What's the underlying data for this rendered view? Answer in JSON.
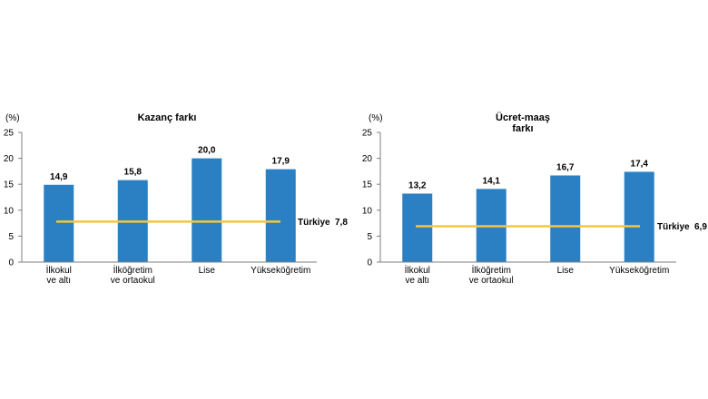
{
  "chart_data": [
    {
      "type": "bar",
      "title_lines": [
        "Kazanç farkı"
      ],
      "unit": "(%)",
      "categories": [
        [
          "İlkokul",
          "ve altı"
        ],
        [
          "İlköğretim",
          "ve ortaokul"
        ],
        [
          "Lise"
        ],
        [
          "Yükseköğretim"
        ]
      ],
      "values": [
        14.9,
        15.8,
        20.0,
        17.9
      ],
      "value_labels": [
        "14,9",
        "15,8",
        "20,0",
        "17,9"
      ],
      "ylim": [
        0,
        25
      ],
      "yticks": [
        0,
        5,
        10,
        15,
        20,
        25
      ],
      "reference_line": {
        "label": "Türkiye",
        "value": 7.8,
        "value_label": "7,8"
      },
      "colors": {
        "bar": "#2b7fc3",
        "reference_line": "#f5c542",
        "axis": "#7f7f7f"
      }
    },
    {
      "type": "bar",
      "title_lines": [
        "Ücret-maaş",
        "farkı"
      ],
      "unit": "(%)",
      "categories": [
        [
          "İlkokul",
          "ve altı"
        ],
        [
          "İlköğretim",
          "ve ortaokul"
        ],
        [
          "Lise"
        ],
        [
          "Yükseköğretim"
        ]
      ],
      "values": [
        13.2,
        14.1,
        16.7,
        17.4
      ],
      "value_labels": [
        "13,2",
        "14,1",
        "16,7",
        "17,4"
      ],
      "ylim": [
        0,
        25
      ],
      "yticks": [
        0,
        5,
        10,
        15,
        20,
        25
      ],
      "reference_line": {
        "label": "Türkiye",
        "value": 6.9,
        "value_label": "6,9"
      },
      "colors": {
        "bar": "#2b7fc3",
        "reference_line": "#f5c542",
        "axis": "#7f7f7f"
      }
    }
  ]
}
